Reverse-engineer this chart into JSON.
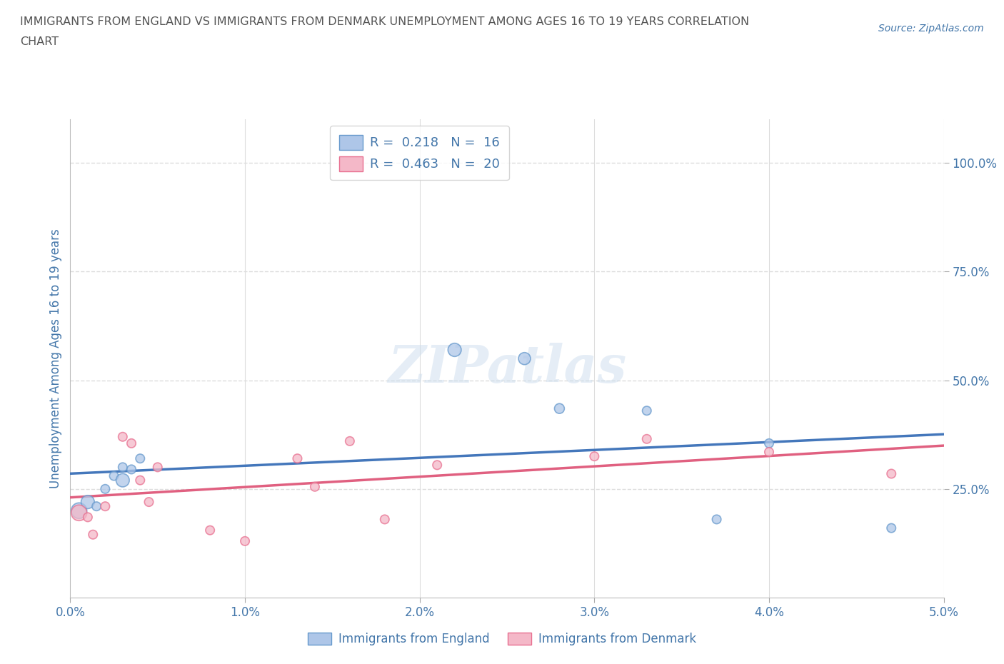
{
  "title_line1": "IMMIGRANTS FROM ENGLAND VS IMMIGRANTS FROM DENMARK UNEMPLOYMENT AMONG AGES 16 TO 19 YEARS CORRELATION",
  "title_line2": "CHART",
  "source_text": "Source: ZipAtlas.com",
  "ylabel": "Unemployment Among Ages 16 to 19 years",
  "xlabel": "",
  "xlim": [
    0.0,
    0.05
  ],
  "ylim": [
    0.0,
    1.1
  ],
  "xtick_labels": [
    "0.0%",
    "1.0%",
    "2.0%",
    "3.0%",
    "4.0%",
    "5.0%"
  ],
  "xtick_vals": [
    0.0,
    0.01,
    0.02,
    0.03,
    0.04,
    0.05
  ],
  "ytick_labels": [
    "25.0%",
    "50.0%",
    "75.0%",
    "100.0%"
  ],
  "ytick_vals": [
    0.25,
    0.5,
    0.75,
    1.0
  ],
  "england_color": "#aec6e8",
  "denmark_color": "#f4b8c8",
  "england_edge_color": "#6699cc",
  "denmark_edge_color": "#e87090",
  "england_line_color": "#4477bb",
  "denmark_line_color": "#e06080",
  "england_R": 0.218,
  "england_N": 16,
  "denmark_R": 0.463,
  "denmark_N": 20,
  "england_x": [
    0.0005,
    0.001,
    0.0015,
    0.002,
    0.0025,
    0.003,
    0.003,
    0.0035,
    0.004,
    0.022,
    0.026,
    0.028,
    0.033,
    0.037,
    0.04,
    0.047
  ],
  "england_y": [
    0.2,
    0.22,
    0.21,
    0.25,
    0.28,
    0.27,
    0.3,
    0.295,
    0.32,
    0.57,
    0.55,
    0.435,
    0.43,
    0.18,
    0.355,
    0.16
  ],
  "england_sizes": [
    250,
    180,
    80,
    80,
    80,
    180,
    80,
    80,
    80,
    180,
    150,
    100,
    80,
    80,
    80,
    80
  ],
  "denmark_x": [
    0.0005,
    0.001,
    0.0013,
    0.002,
    0.003,
    0.0035,
    0.004,
    0.0045,
    0.005,
    0.008,
    0.01,
    0.013,
    0.014,
    0.016,
    0.018,
    0.021,
    0.03,
    0.033,
    0.04,
    0.047
  ],
  "denmark_y": [
    0.195,
    0.185,
    0.145,
    0.21,
    0.37,
    0.355,
    0.27,
    0.22,
    0.3,
    0.155,
    0.13,
    0.32,
    0.255,
    0.36,
    0.18,
    0.305,
    0.325,
    0.365,
    0.335,
    0.285
  ],
  "denmark_sizes": [
    250,
    80,
    80,
    80,
    80,
    80,
    80,
    80,
    80,
    80,
    80,
    80,
    80,
    80,
    80,
    80,
    80,
    80,
    80,
    80
  ],
  "watermark_text": "ZIPatlas",
  "bg_color": "#ffffff",
  "grid_color": "#dddddd",
  "title_color": "#555555",
  "axis_label_color": "#4477aa",
  "tick_label_color": "#4477aa",
  "legend_text_color": "#333333"
}
